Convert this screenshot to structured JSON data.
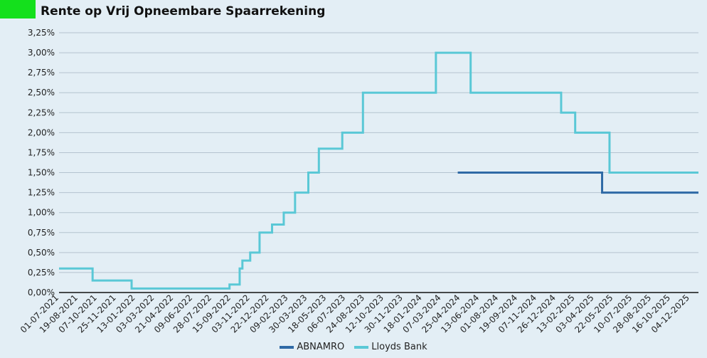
{
  "title": "Rente op Vrij Opneembare Spaarrekening",
  "colors": {
    "logo": "#14e01c",
    "ABNAMRO": "#2f6aa6",
    "Lloyds Bank": "#5ac8d6",
    "grid": "#b4c3cf",
    "background": "#e3eef5"
  },
  "chart_data": {
    "type": "line",
    "step": true,
    "title": "Rente op Vrij Opneembare Spaarrekening",
    "xlabel": "",
    "ylabel": "",
    "ylim": [
      0,
      3.25
    ],
    "xlim": [
      "01-07-2021",
      "26-12-2025"
    ],
    "grid": true,
    "legend": "bottom",
    "y_ticks": [
      "0,00%",
      "0,25%",
      "0,50%",
      "0,75%",
      "1,00%",
      "1,25%",
      "1,50%",
      "1,75%",
      "2,00%",
      "2,25%",
      "2,50%",
      "2,75%",
      "3,00%",
      "3,25%"
    ],
    "x_ticks": [
      "01-07-2021",
      "19-08-2021",
      "07-10-2021",
      "25-11-2021",
      "13-01-2022",
      "03-03-2022",
      "21-04-2022",
      "09-06-2022",
      "28-07-2022",
      "15-09-2022",
      "03-11-2022",
      "22-12-2022",
      "09-02-2023",
      "30-03-2023",
      "18-05-2023",
      "06-07-2023",
      "24-08-2023",
      "12-10-2023",
      "30-11-2023",
      "18-01-2024",
      "07-03-2024",
      "25-04-2024",
      "13-06-2024",
      "01-08-2024",
      "19-09-2024",
      "07-11-2024",
      "26-12-2024",
      "13-02-2025",
      "03-04-2025",
      "22-05-2025",
      "10-07-2025",
      "28-08-2025",
      "16-10-2025",
      "04-12-2025"
    ],
    "series": [
      {
        "name": "ABNAMRO",
        "points": [
          [
            "18-04-2024",
            1.5
          ],
          [
            "23-04-2025",
            1.25
          ],
          [
            "26-12-2025",
            1.25
          ]
        ]
      },
      {
        "name": "Lloyds Bank",
        "points": [
          [
            "01-07-2021",
            0.3
          ],
          [
            "25-09-2021",
            0.15
          ],
          [
            "03-01-2022",
            0.05
          ],
          [
            "11-09-2022",
            0.1
          ],
          [
            "07-10-2022",
            0.3
          ],
          [
            "14-10-2022",
            0.4
          ],
          [
            "03-11-2022",
            0.5
          ],
          [
            "27-11-2022",
            0.75
          ],
          [
            "29-12-2022",
            0.85
          ],
          [
            "28-01-2023",
            1.0
          ],
          [
            "26-02-2023",
            1.25
          ],
          [
            "01-04-2023",
            1.5
          ],
          [
            "28-04-2023",
            1.8
          ],
          [
            "27-06-2023",
            2.0
          ],
          [
            "19-08-2023",
            2.5
          ],
          [
            "22-02-2024",
            3.0
          ],
          [
            "21-05-2024",
            2.5
          ],
          [
            "08-01-2025",
            2.25
          ],
          [
            "13-02-2025",
            2.0
          ],
          [
            "12-05-2025",
            1.5
          ],
          [
            "26-12-2025",
            1.5
          ]
        ]
      }
    ]
  }
}
